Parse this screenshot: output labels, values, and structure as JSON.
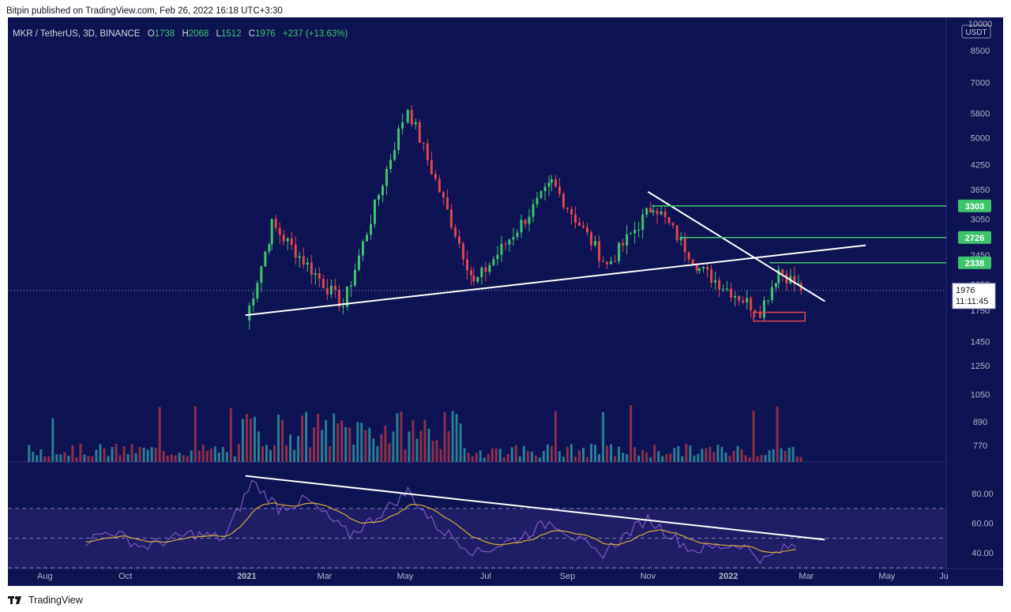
{
  "header": {
    "published": "Bitpin published on TradingView.com, Feb 26, 2022 16:18 UTC+3:30"
  },
  "legend": {
    "symbol": "MKR / TetherUS, 3D, BINANCE",
    "o_label": "O",
    "o": "1738",
    "h_label": "H",
    "h": "2068",
    "l_label": "L",
    "l": "1512",
    "c_label": "C",
    "c": "1976",
    "change": "+237 (+13.63%)"
  },
  "price_axis": {
    "currency": "USDT",
    "ticks": [
      "10000",
      "8500",
      "7000",
      "5800",
      "5000",
      "4250",
      "3650",
      "3050",
      "2450",
      "2050",
      "1750",
      "1450",
      "1250",
      "1050",
      "890",
      "770"
    ],
    "last_price": "1976",
    "countdown": "11:11:45",
    "level_labels": [
      "3303",
      "2726",
      "2338"
    ]
  },
  "rsi_axis": {
    "ticks": [
      "80.00",
      "60.00",
      "40.00"
    ]
  },
  "time_axis": {
    "labels": [
      "Aug",
      "Oct",
      "2021",
      "Mar",
      "May",
      "Jul",
      "Sep",
      "Nov",
      "2022",
      "Mar",
      "May",
      "Ju"
    ]
  },
  "footer": {
    "brand": "TradingView"
  },
  "chart_data": {
    "type": "candlestick",
    "symbol": "MKR / TetherUS",
    "interval": "3D",
    "exchange": "BINANCE",
    "y_scale": "log",
    "ylim": [
      700,
      10000
    ],
    "x_range": [
      "2020-07-04",
      "2022-06-15"
    ],
    "key_points": [
      {
        "date": "2020-12-31",
        "price": 1650
      },
      {
        "date": "2021-01-20",
        "price": 2950
      },
      {
        "date": "2021-03-15",
        "price": 1800
      },
      {
        "date": "2021-05-03",
        "price": 6000
      },
      {
        "date": "2021-06-22",
        "price": 2050
      },
      {
        "date": "2021-08-20",
        "price": 3800
      },
      {
        "date": "2021-10-01",
        "price": 2300
      },
      {
        "date": "2021-11-05",
        "price": 3350
      },
      {
        "date": "2021-12-10",
        "price": 2250
      },
      {
        "date": "2022-01-25",
        "price": 1750
      },
      {
        "date": "2022-02-08",
        "price": 2250
      },
      {
        "date": "2022-02-25",
        "price": 1976
      }
    ],
    "horizontal_levels": [
      3303,
      2726,
      2338
    ],
    "support_zone": {
      "from": "2022-01-20",
      "to": "2022-02-28",
      "low": 1640,
      "high": 1730
    },
    "trendlines": [
      {
        "from": {
          "date": "2020-12-31",
          "price": 1700
        },
        "to": {
          "date": "2022-04-15",
          "price": 2600
        }
      },
      {
        "from": {
          "date": "2021-11-01",
          "price": 3600
        },
        "to": {
          "date": "2022-03-15",
          "price": 1850
        }
      }
    ],
    "last": {
      "open": 1738,
      "high": 2068,
      "low": 1512,
      "close": 1976,
      "change": 237,
      "change_pct": 13.63
    },
    "rsi": {
      "ylim": [
        30,
        95
      ],
      "upper_band": 70,
      "mid": 50,
      "lower_band": 30,
      "values": [
        {
          "date": "2020-09-01",
          "rsi": 48
        },
        {
          "date": "2020-09-20",
          "rsi": 55
        },
        {
          "date": "2020-10-15",
          "rsi": 44
        },
        {
          "date": "2020-11-20",
          "rsi": 53
        },
        {
          "date": "2020-12-15",
          "rsi": 50
        },
        {
          "date": "2021-01-05",
          "rsi": 88
        },
        {
          "date": "2021-01-25",
          "rsi": 70
        },
        {
          "date": "2021-02-15",
          "rsi": 76
        },
        {
          "date": "2021-03-20",
          "rsi": 52
        },
        {
          "date": "2021-04-10",
          "rsi": 65
        },
        {
          "date": "2021-05-03",
          "rsi": 82
        },
        {
          "date": "2021-05-25",
          "rsi": 58
        },
        {
          "date": "2021-06-25",
          "rsi": 40
        },
        {
          "date": "2021-07-25",
          "rsi": 50
        },
        {
          "date": "2021-08-20",
          "rsi": 62
        },
        {
          "date": "2021-09-25",
          "rsi": 38
        },
        {
          "date": "2021-11-01",
          "rsi": 63
        },
        {
          "date": "2021-12-05",
          "rsi": 42
        },
        {
          "date": "2022-01-10",
          "rsi": 46
        },
        {
          "date": "2022-01-28",
          "rsi": 35
        },
        {
          "date": "2022-02-15",
          "rsi": 44
        },
        {
          "date": "2022-02-25",
          "rsi": 45
        }
      ],
      "trendline": {
        "from": {
          "date": "2020-12-31",
          "rsi": 92
        },
        "to": {
          "date": "2022-03-15",
          "rsi": 49
        }
      }
    }
  }
}
